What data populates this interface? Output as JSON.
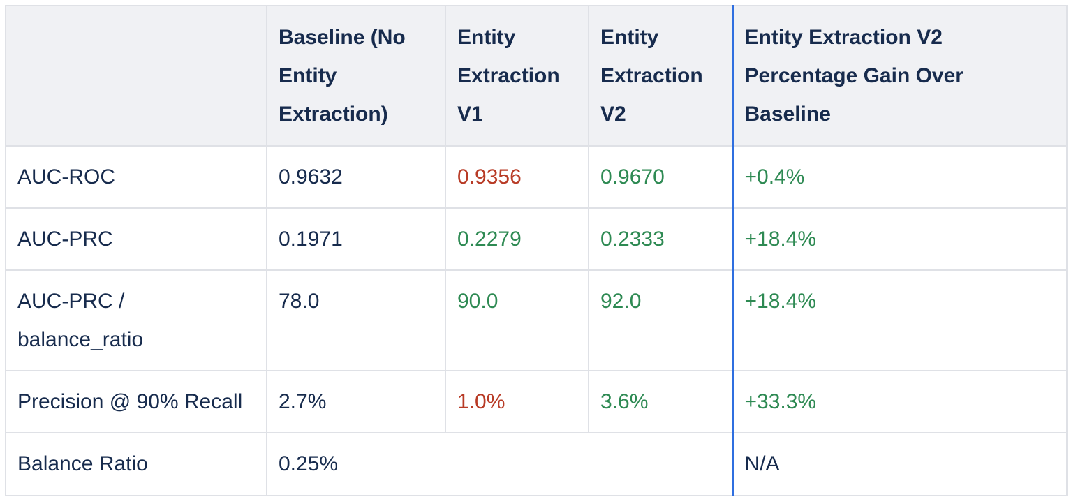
{
  "colors": {
    "text": "#172b4d",
    "header_bg": "#f0f1f4",
    "border": "#dfe1e6",
    "positive": "#2e8a53",
    "negative": "#b83b26",
    "divider": "#2f6fe0"
  },
  "table": {
    "headers": [
      "",
      "Baseline (No Entity Extraction)",
      "Entity Extraction V1",
      "Entity Extraction V2",
      "Entity Extraction V2 Percentage Gain Over Baseline"
    ],
    "rows": [
      {
        "metric": "AUC-ROC",
        "baseline": "0.9632",
        "v1": "0.9356",
        "v2": "0.9670",
        "gain": "+0.4%"
      },
      {
        "metric": "AUC-PRC",
        "baseline": "0.1971",
        "v1": "0.2279",
        "v2": "0.2333",
        "gain": "+18.4%"
      },
      {
        "metric": "AUC-PRC / balance_ratio",
        "baseline": "78.0",
        "v1": "90.0",
        "v2": "92.0",
        "gain": "+18.4%"
      },
      {
        "metric": "Precision @ 90% Recall",
        "baseline": "2.7%",
        "v1": "1.0%",
        "v2": "3.6%",
        "gain": "+33.3%"
      },
      {
        "metric": "Balance Ratio",
        "merged_value": "0.25%",
        "gain": "N/A"
      }
    ]
  }
}
